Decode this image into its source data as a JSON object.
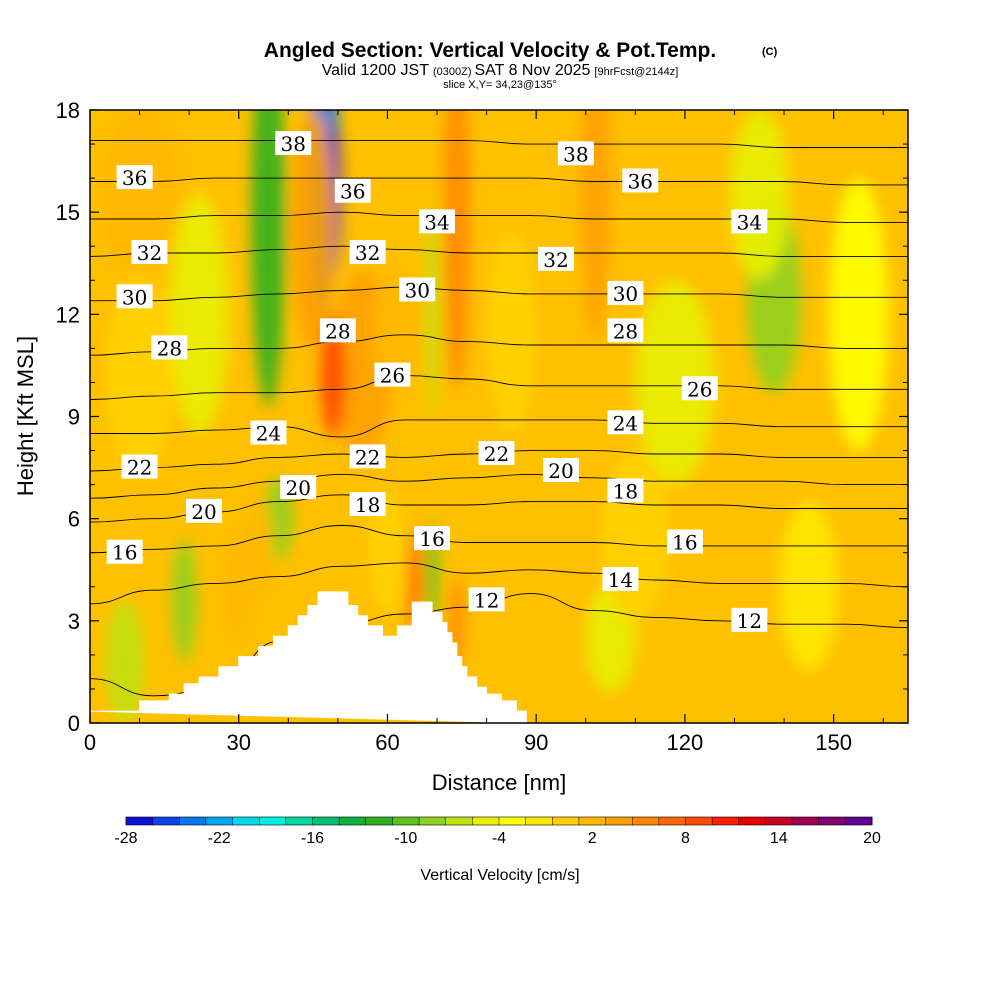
{
  "chart_data": {
    "type": "heatmap",
    "title": "Angled Section: Vertical Velocity & Pot.Temp.",
    "title_mark": "(C)",
    "subtitle": {
      "prefix": "Valid 1200 JST",
      "utc": "(0300Z)",
      "date": "SAT 8 Nov 2025",
      "forecast": "[9hrFcst@2144z]"
    },
    "slice": "slice X,Y= 34,23@135°",
    "xlabel": "Distance [nm]",
    "ylabel": "Height [Kft MSL]",
    "xlim": [
      0,
      165
    ],
    "ylim": [
      0,
      18
    ],
    "xticks": [
      0,
      30,
      60,
      90,
      120,
      150
    ],
    "yticks": [
      0,
      3,
      6,
      9,
      12,
      15,
      18
    ],
    "colorbar": {
      "label": "Vertical Velocity [cm/s]",
      "range": [
        -28,
        20
      ],
      "step": 2,
      "tick_labels": [
        "-28",
        "-22",
        "-16",
        "-10",
        "-4",
        "2",
        "8",
        "14",
        "20"
      ],
      "tick_values": [
        -28,
        -22,
        -16,
        -10,
        -4,
        2,
        8,
        14,
        20
      ],
      "colors": [
        "#1010d8",
        "#1040e8",
        "#0878f0",
        "#00a8f0",
        "#00d8f0",
        "#00f0e0",
        "#00d8a0",
        "#00c070",
        "#10b040",
        "#30b020",
        "#60c020",
        "#90d020",
        "#c0e010",
        "#e8f000",
        "#ffff00",
        "#ffe800",
        "#ffd000",
        "#ffb800",
        "#ffa000",
        "#ff8800",
        "#ff6800",
        "#ff4800",
        "#f82000",
        "#e80000",
        "#c80020",
        "#a00050",
        "#800070",
        "#600090"
      ]
    },
    "terrain": [
      [
        0,
        0.35
      ],
      [
        10,
        0.35
      ],
      [
        10,
        0.65
      ],
      [
        16,
        0.65
      ],
      [
        16,
        0.85
      ],
      [
        19,
        0.85
      ],
      [
        19,
        1.15
      ],
      [
        22,
        1.15
      ],
      [
        22,
        1.35
      ],
      [
        26,
        1.35
      ],
      [
        26,
        1.65
      ],
      [
        30,
        1.65
      ],
      [
        30,
        1.95
      ],
      [
        34,
        1.95
      ],
      [
        34,
        2.25
      ],
      [
        37,
        2.25
      ],
      [
        37,
        2.55
      ],
      [
        40,
        2.55
      ],
      [
        40,
        2.85
      ],
      [
        42,
        2.85
      ],
      [
        42,
        3.15
      ],
      [
        44,
        3.15
      ],
      [
        44,
        3.45
      ],
      [
        46,
        3.45
      ],
      [
        46,
        3.85
      ],
      [
        52,
        3.85
      ],
      [
        52,
        3.45
      ],
      [
        54,
        3.45
      ],
      [
        54,
        3.15
      ],
      [
        56,
        3.15
      ],
      [
        56,
        2.85
      ],
      [
        59,
        2.85
      ],
      [
        59,
        2.55
      ],
      [
        62,
        2.55
      ],
      [
        62,
        2.85
      ],
      [
        65,
        2.85
      ],
      [
        65,
        3.55
      ],
      [
        69,
        3.55
      ],
      [
        69,
        3.25
      ],
      [
        71,
        3.25
      ],
      [
        71,
        2.95
      ],
      [
        72,
        2.95
      ],
      [
        72,
        2.65
      ],
      [
        73,
        2.65
      ],
      [
        73,
        2.35
      ],
      [
        74,
        2.35
      ],
      [
        74,
        1.95
      ],
      [
        75,
        1.95
      ],
      [
        75,
        1.65
      ],
      [
        76,
        1.65
      ],
      [
        76,
        1.35
      ],
      [
        78,
        1.35
      ],
      [
        78,
        1.05
      ],
      [
        80,
        1.05
      ],
      [
        80,
        0.85
      ],
      [
        83,
        0.85
      ],
      [
        83,
        0.65
      ],
      [
        86,
        0.65
      ],
      [
        86,
        0.35
      ],
      [
        88,
        0.35
      ],
      [
        88,
        0
      ]
    ],
    "velocity_features": [
      {
        "x": 47,
        "y": 16.3,
        "w": 3.2,
        "h": 4.2,
        "v": -24
      },
      {
        "x": 49,
        "y": 15.4,
        "w": 1.6,
        "h": 2.2,
        "v": -28
      },
      {
        "x": 36,
        "y": 14.8,
        "w": 3.5,
        "h": 5.5,
        "v": -10
      },
      {
        "x": 45,
        "y": 14.5,
        "w": 4.5,
        "h": 3.5,
        "v": 8
      },
      {
        "x": 74,
        "y": 14.8,
        "w": 2.6,
        "h": 5.0,
        "v": 11
      },
      {
        "x": 102,
        "y": 15.8,
        "w": 3.0,
        "h": 4.5,
        "v": 8
      },
      {
        "x": 138,
        "y": 12.5,
        "w": 5.5,
        "h": 2.8,
        "v": -6
      },
      {
        "x": 135,
        "y": 15.5,
        "w": 6.0,
        "h": 2.5,
        "v": -2
      },
      {
        "x": 55,
        "y": 10.5,
        "w": 6.0,
        "h": 2.8,
        "v": 8
      },
      {
        "x": 49,
        "y": 10.2,
        "w": 2.6,
        "h": 1.8,
        "v": 14
      },
      {
        "x": 62,
        "y": 11.5,
        "w": 5.0,
        "h": 1.8,
        "v": 6
      },
      {
        "x": 69,
        "y": 12.2,
        "w": 1.3,
        "h": 3.2,
        "v": -4
      },
      {
        "x": 10,
        "y": 15.5,
        "w": 8.0,
        "h": 2.5,
        "v": 7
      },
      {
        "x": 10,
        "y": 10.2,
        "w": 7.0,
        "h": 3.0,
        "v": 5
      },
      {
        "x": 22,
        "y": 12.0,
        "w": 6.0,
        "h": 3.5,
        "v": -2
      },
      {
        "x": 118,
        "y": 10.0,
        "w": 8.0,
        "h": 3.0,
        "v": -1
      },
      {
        "x": 38,
        "y": 6.0,
        "w": 3.0,
        "h": 1.2,
        "v": -6
      },
      {
        "x": 34,
        "y": 5.2,
        "w": 3.0,
        "h": 1.4,
        "v": 6
      },
      {
        "x": 65.5,
        "y": 4.2,
        "w": 1.4,
        "h": 1.5,
        "v": 12
      },
      {
        "x": 69,
        "y": 4.4,
        "w": 1.2,
        "h": 1.5,
        "v": -8
      },
      {
        "x": 74,
        "y": 2.9,
        "w": 1.5,
        "h": 1.4,
        "v": 10
      },
      {
        "x": 7,
        "y": 1.8,
        "w": 4.0,
        "h": 1.8,
        "v": -3
      },
      {
        "x": 19,
        "y": 3.6,
        "w": 2.5,
        "h": 1.8,
        "v": -5
      },
      {
        "x": 30,
        "y": 4.0,
        "w": 3.0,
        "h": 1.5,
        "v": 6
      },
      {
        "x": 105,
        "y": 2.5,
        "w": 5.0,
        "h": 1.6,
        "v": -2
      },
      {
        "x": 60,
        "y": 5.0,
        "w": 4.0,
        "h": 1.8,
        "v": 5
      },
      {
        "x": 110,
        "y": 5.5,
        "w": 7.0,
        "h": 2.5,
        "v": 5
      },
      {
        "x": 145,
        "y": 4.0,
        "w": 6.0,
        "h": 2.5,
        "v": 3
      },
      {
        "x": 85,
        "y": 11.5,
        "w": 5.0,
        "h": 3.0,
        "v": 4
      },
      {
        "x": 155,
        "y": 12.0,
        "w": 6.0,
        "h": 4.0,
        "v": 1
      }
    ],
    "isentropes": [
      {
        "value": 12,
        "levels": [
          1.3,
          0.8,
          1.0,
          2.4,
          2.9,
          3.2,
          3.4,
          3.8,
          3.3,
          3.1,
          3.0,
          2.9,
          2.9,
          2.8
        ],
        "label": "12",
        "labels_at": [
          [
            80,
            3.6
          ],
          [
            133,
            3.0
          ]
        ]
      },
      {
        "value": 14,
        "levels": [
          3.5,
          3.9,
          4.1,
          4.3,
          4.6,
          4.7,
          4.4,
          4.5,
          4.4,
          4.2,
          4.1,
          4.1,
          4.1,
          4.0
        ],
        "label": "14",
        "labels_at": [
          [
            107,
            4.2
          ]
        ]
      },
      {
        "value": 16,
        "levels": [
          5.0,
          5.1,
          5.2,
          5.5,
          5.8,
          5.5,
          5.3,
          5.3,
          5.3,
          5.2,
          5.2,
          5.2,
          5.2,
          5.2
        ],
        "label": "16",
        "labels_at": [
          [
            7,
            5.0
          ],
          [
            69,
            5.4
          ],
          [
            120,
            5.3
          ]
        ]
      },
      {
        "value": 18,
        "levels": [
          5.9,
          6.0,
          6.2,
          6.5,
          6.7,
          6.4,
          6.4,
          6.5,
          6.5,
          6.4,
          6.4,
          6.3,
          6.3,
          6.3
        ],
        "label": "18",
        "labels_at": [
          [
            56,
            6.4
          ],
          [
            108,
            6.8
          ]
        ]
      },
      {
        "value": 20,
        "levels": [
          6.6,
          6.7,
          6.9,
          7.1,
          7.3,
          7.1,
          7.2,
          7.3,
          7.2,
          7.1,
          7.1,
          7.1,
          7.0,
          7.0
        ],
        "label": "20",
        "labels_at": [
          [
            23,
            6.2
          ],
          [
            42,
            6.9
          ],
          [
            95,
            7.4
          ]
        ]
      },
      {
        "value": 22,
        "levels": [
          7.4,
          7.5,
          7.6,
          7.8,
          7.9,
          7.8,
          7.9,
          8.0,
          8.0,
          7.9,
          7.9,
          7.8,
          7.8,
          7.8
        ],
        "label": "22",
        "labels_at": [
          [
            10,
            7.5
          ],
          [
            56,
            7.8
          ],
          [
            82,
            7.9
          ]
        ]
      },
      {
        "value": 24,
        "levels": [
          8.5,
          8.5,
          8.6,
          8.7,
          8.4,
          8.9,
          8.9,
          8.9,
          8.9,
          8.8,
          8.8,
          8.7,
          8.7,
          8.7
        ],
        "label": "24",
        "labels_at": [
          [
            36,
            8.5
          ],
          [
            108,
            8.8
          ]
        ]
      },
      {
        "value": 26,
        "levels": [
          9.5,
          9.6,
          9.7,
          9.7,
          9.8,
          10.2,
          10.1,
          9.9,
          9.9,
          9.9,
          9.9,
          9.8,
          9.8,
          9.8
        ],
        "label": "26",
        "labels_at": [
          [
            61,
            10.2
          ],
          [
            123,
            9.8
          ]
        ]
      },
      {
        "value": 28,
        "levels": [
          10.8,
          10.9,
          11.0,
          11.0,
          11.2,
          11.4,
          11.2,
          11.1,
          11.1,
          11.1,
          11.1,
          11.1,
          11.0,
          11.0
        ],
        "label": "28",
        "labels_at": [
          [
            16,
            11.0
          ],
          [
            50,
            11.5
          ],
          [
            108,
            11.5
          ]
        ]
      },
      {
        "value": 30,
        "levels": [
          12.4,
          12.4,
          12.5,
          12.6,
          12.7,
          12.8,
          12.7,
          12.6,
          12.6,
          12.6,
          12.6,
          12.5,
          12.5,
          12.5
        ],
        "label": "30",
        "labels_at": [
          [
            9,
            12.5
          ],
          [
            66,
            12.7
          ],
          [
            108,
            12.6
          ]
        ]
      },
      {
        "value": 32,
        "levels": [
          13.7,
          13.8,
          13.8,
          13.9,
          14.0,
          13.9,
          13.8,
          13.8,
          13.8,
          13.8,
          13.8,
          13.7,
          13.7,
          13.7
        ],
        "label": "32",
        "labels_at": [
          [
            12,
            13.8
          ],
          [
            56,
            13.8
          ],
          [
            94,
            13.6
          ]
        ]
      },
      {
        "value": 34,
        "levels": [
          14.8,
          14.8,
          14.9,
          14.9,
          15.0,
          14.9,
          14.9,
          14.9,
          14.8,
          14.8,
          14.8,
          14.8,
          14.7,
          14.7
        ],
        "label": "34",
        "labels_at": [
          [
            70,
            14.7
          ],
          [
            133,
            14.7
          ]
        ]
      },
      {
        "value": 36,
        "levels": [
          15.9,
          15.9,
          16.0,
          16.0,
          16.0,
          16.0,
          16.0,
          16.0,
          15.9,
          15.9,
          15.9,
          15.9,
          15.8,
          15.8
        ],
        "label": "36",
        "labels_at": [
          [
            9,
            16.0
          ],
          [
            53,
            15.6
          ],
          [
            111,
            15.9
          ]
        ]
      },
      {
        "value": 38,
        "levels": [
          17.1,
          17.1,
          17.1,
          17.1,
          17.1,
          17.1,
          17.1,
          17.0,
          17.0,
          17.0,
          17.0,
          16.9,
          16.9,
          16.9
        ],
        "label": "38",
        "labels_at": [
          [
            41,
            17.0
          ],
          [
            98,
            16.7
          ]
        ]
      }
    ]
  }
}
